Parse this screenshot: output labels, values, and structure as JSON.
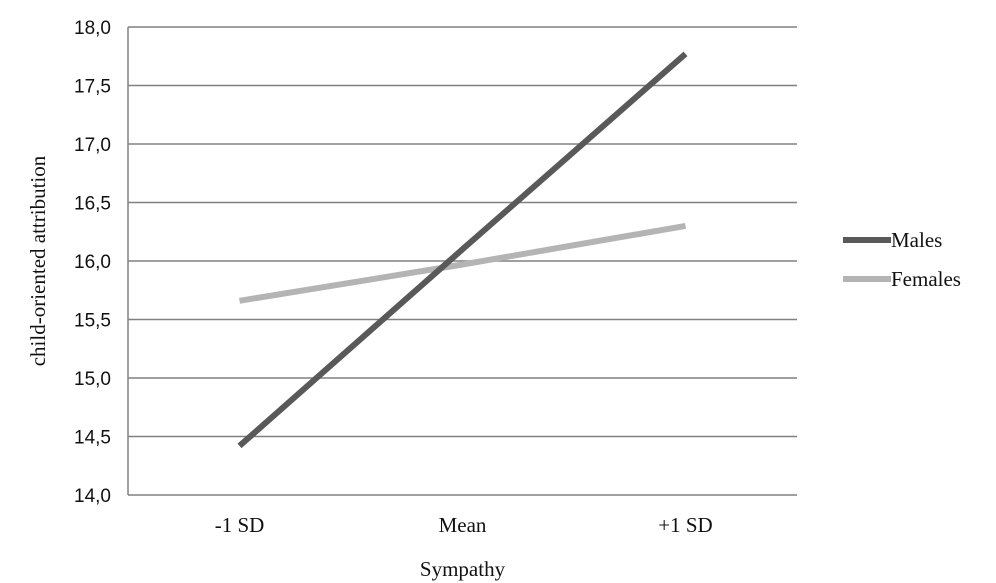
{
  "chart_data": {
    "type": "line",
    "categories": [
      "-1 SD",
      "Mean",
      "+1 SD"
    ],
    "series": [
      {
        "name": "Males",
        "values": [
          14.42,
          16.1,
          17.77
        ],
        "color": "#595959"
      },
      {
        "name": "Females",
        "values": [
          15.66,
          15.97,
          16.3
        ],
        "color": "#b4b4b4"
      }
    ],
    "xlabel": "Sympathy",
    "ylabel": "child-oriented attribution",
    "ylim": [
      14.0,
      18.0
    ],
    "yticks": [
      "14,0",
      "14,5",
      "15,0",
      "15,5",
      "16,0",
      "16,5",
      "17,0",
      "17,5",
      "18,0"
    ],
    "grid": true,
    "legend_position": "right"
  }
}
